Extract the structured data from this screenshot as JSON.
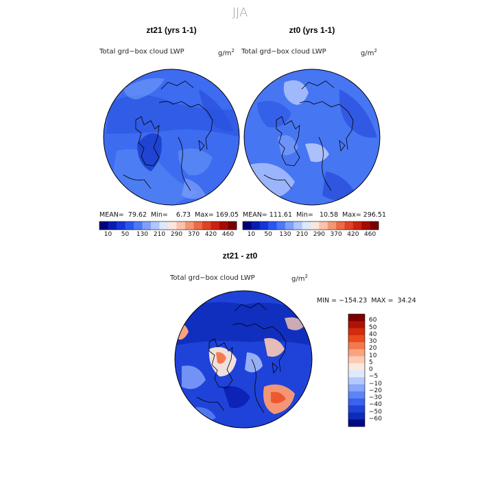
{
  "figure": {
    "season": "JJA",
    "map": {
      "projection": "north-polar-stereographic",
      "coastlines": true,
      "plots": [
        {
          "id": "zt21",
          "title": "zt21 (yrs 1-1)",
          "label": "Total grd−box cloud LWP",
          "units": "g/m",
          "units_exp": "2",
          "stats": "MEAN=  79.62  Min=    6.73  Max= 169.05",
          "mean": 79.62,
          "min": 6.73,
          "max": 169.05
        },
        {
          "id": "zt0",
          "title": "zt0 (yrs 1-1)",
          "label": "Total grd−box cloud LWP",
          "units": "g/m",
          "units_exp": "2",
          "stats": "MEAN= 111.61  Min=   10.58  Max= 296.51",
          "mean": 111.61,
          "min": 10.58,
          "max": 296.51
        },
        {
          "id": "diff",
          "title": "zt21 - zt0",
          "label": "Total grd−box cloud LWP",
          "units": "g/m",
          "units_exp": "2",
          "stats": "MIN = −154.23  MAX =  34.24",
          "min": -154.23,
          "max": 34.24
        }
      ]
    },
    "colorbar_field": {
      "ticks": [
        "10",
        "50",
        "130",
        "210",
        "290",
        "370",
        "420",
        "460"
      ],
      "colors": [
        "#00007a",
        "#0a1cb0",
        "#1336d6",
        "#2b56ee",
        "#4d78f6",
        "#7ea0fb",
        "#b0c6fc",
        "#dde7fd",
        "#fbe6dc",
        "#f9c3ac",
        "#f49676",
        "#ec6a45",
        "#df4325",
        "#c92212",
        "#a50b05",
        "#7a0000"
      ]
    },
    "colorbar_diff": {
      "ticks": [
        "60",
        "50",
        "40",
        "30",
        "20",
        "10",
        "5",
        "0",
        "−5",
        "−10",
        "−20",
        "−30",
        "−40",
        "−50",
        "−60"
      ],
      "colors": [
        "#7a0000",
        "#b01205",
        "#d22b0d",
        "#eb4a1e",
        "#f47a4e",
        "#f9a47f",
        "#fbcbb4",
        "#fce8dc",
        "#dfe9fd",
        "#b4c9fd",
        "#87a7fb",
        "#5d84f6",
        "#3a62ec",
        "#1f43d9",
        "#0f2cb8",
        "#000a85"
      ]
    }
  }
}
